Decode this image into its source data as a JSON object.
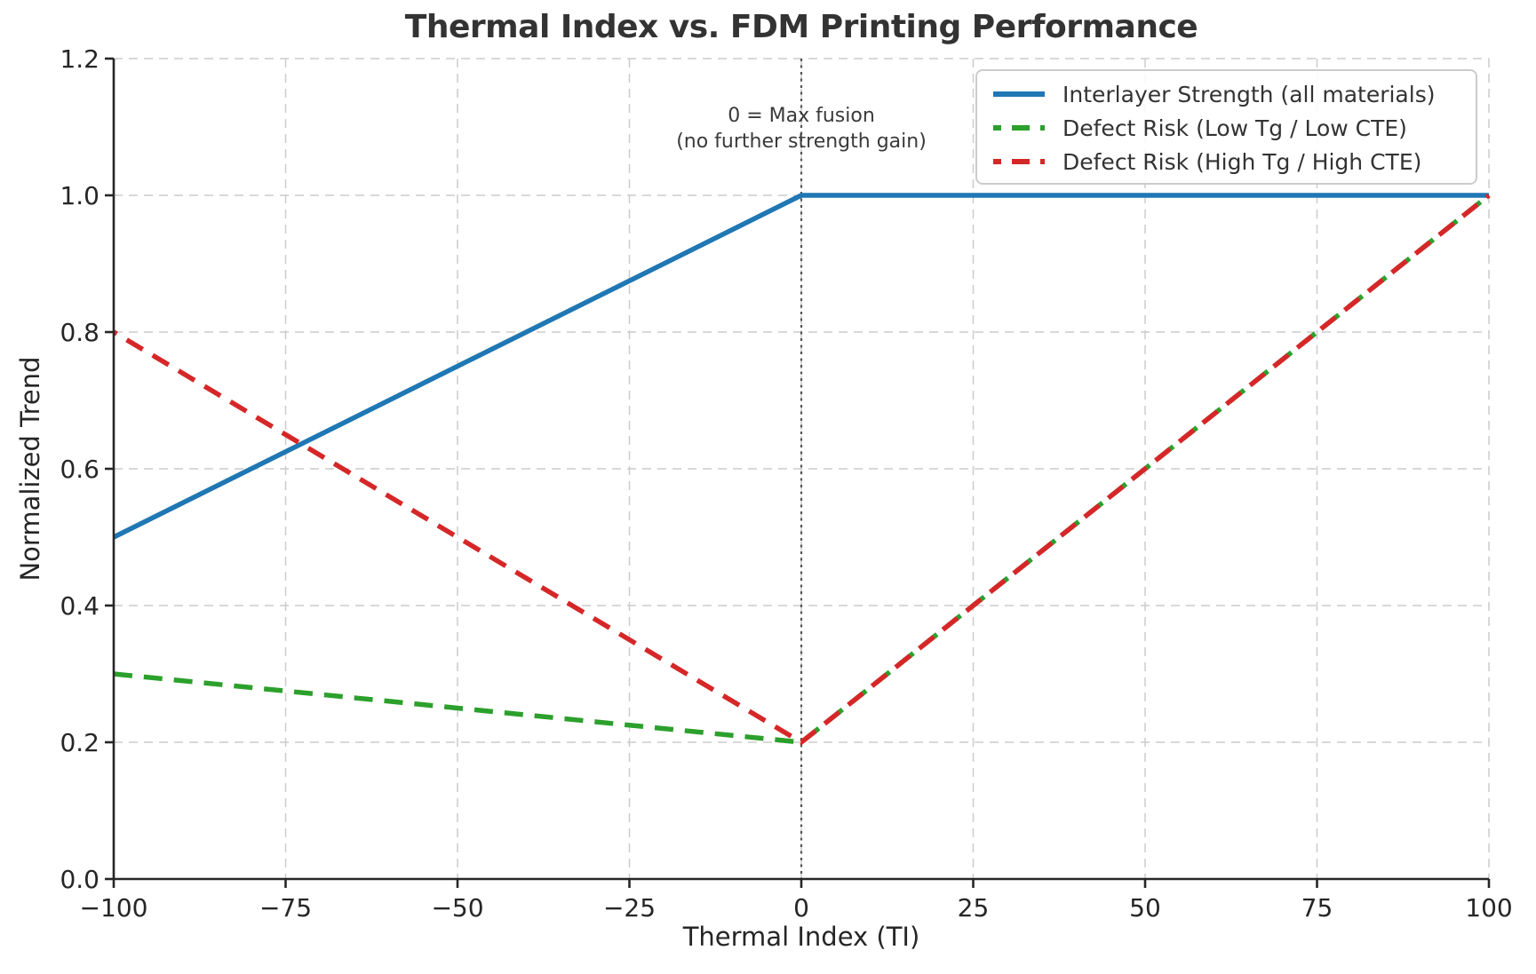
{
  "chart_data": {
    "type": "line",
    "title": "Thermal Index vs. FDM Printing Performance",
    "xlabel": "Thermal Index (TI)",
    "ylabel": "Normalized Trend",
    "xlim": [
      -100,
      100
    ],
    "ylim": [
      0.0,
      1.2
    ],
    "xticks": [
      -100,
      -75,
      -50,
      -25,
      0,
      25,
      50,
      75,
      100
    ],
    "xtick_labels": [
      "−100",
      "−75",
      "−50",
      "−25",
      "0",
      "25",
      "50",
      "75",
      "100"
    ],
    "yticks": [
      0.0,
      0.2,
      0.4,
      0.6,
      0.8,
      1.0,
      1.2
    ],
    "ytick_labels": [
      "0.0",
      "0.2",
      "0.4",
      "0.6",
      "0.8",
      "1.0",
      "1.2"
    ],
    "grid": true,
    "grid_color": "#cccccc",
    "axis_color": "#262626",
    "text_color": "#333333",
    "legend_position": "upper right",
    "series": [
      {
        "name": "Interlayer Strength (all materials)",
        "color": "#1f77b4",
        "style": "solid",
        "x": [
          -100,
          0,
          100
        ],
        "y": [
          0.5,
          1.0,
          1.0
        ]
      },
      {
        "name": "Defect Risk (Low Tg / Low CTE)",
        "color": "#2ca02c",
        "style": "dashed",
        "x": [
          -100,
          0,
          100
        ],
        "y": [
          0.3,
          0.2,
          1.0
        ]
      },
      {
        "name": "Defect Risk (High Tg / High CTE)",
        "color": "#d62728",
        "style": "dashed",
        "x": [
          -100,
          0,
          100
        ],
        "y": [
          0.8,
          0.2,
          1.0
        ]
      }
    ],
    "annotation": {
      "line1": "0 = Max fusion",
      "line2": "(no further strength gain)",
      "x": 0,
      "vline_color": "#555555"
    }
  }
}
